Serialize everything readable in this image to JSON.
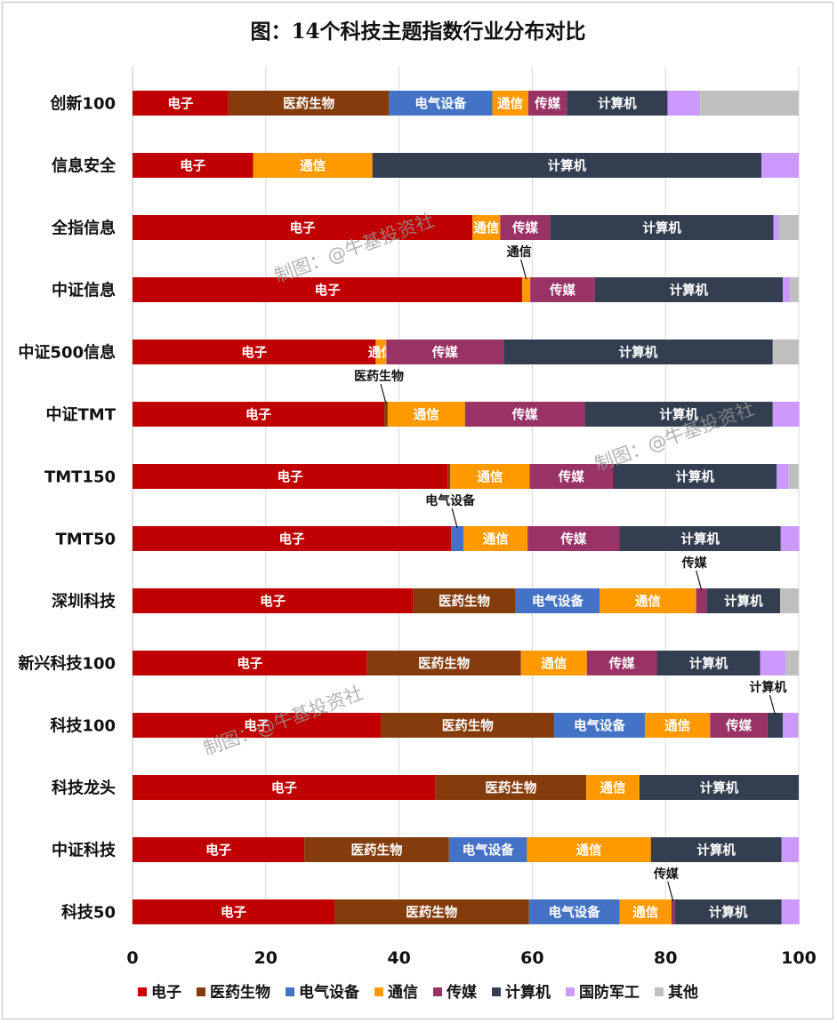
{
  "chart_data": {
    "type": "bar",
    "orientation": "horizontal",
    "stacked": true,
    "title": "图：14个科技主题指数行业分布对比",
    "xlim": [
      0,
      100
    ],
    "xticks": [
      0,
      20,
      40,
      60,
      80,
      100
    ],
    "grid": "vertical",
    "legend_position": "bottom",
    "categories": [
      "创新100",
      "信息安全",
      "全指信息",
      "中证信息",
      "中证500信息",
      "中证TMT",
      "TMT150",
      "TMT50",
      "深圳科技",
      "新兴科技100",
      "科技100",
      "科技龙头",
      "中证科技",
      "科技50"
    ],
    "series": [
      {
        "name": "电子",
        "color": "#c00000",
        "values": [
          14.4,
          18.1,
          51.0,
          58.5,
          36.5,
          37.8,
          47.3,
          47.8,
          42.1,
          35.2,
          37.3,
          45.5,
          25.8,
          30.3
        ]
      },
      {
        "name": "医药生物",
        "color": "#843c0c",
        "values": [
          24.1,
          0,
          0,
          0,
          0,
          0.5,
          0.4,
          0,
          15.4,
          23.1,
          26.0,
          22.6,
          21.7,
          29.2
        ]
      },
      {
        "name": "电气设备",
        "color": "#4472c4",
        "values": [
          15.5,
          0,
          0,
          0,
          0,
          0,
          0,
          1.9,
          12.6,
          0,
          13.6,
          0,
          11.7,
          13.6
        ]
      },
      {
        "name": "通信",
        "color": "#ff9900",
        "values": [
          5.4,
          17.9,
          4.2,
          1.2,
          1.6,
          11.6,
          11.9,
          9.6,
          14.5,
          9.9,
          9.8,
          8.0,
          18.6,
          7.8
        ]
      },
      {
        "name": "传媒",
        "color": "#993366",
        "values": [
          5.8,
          0,
          7.5,
          9.7,
          17.6,
          18.0,
          12.5,
          13.8,
          1.6,
          10.5,
          8.6,
          0,
          0,
          0.5
        ]
      },
      {
        "name": "计算机",
        "color": "#333f50",
        "values": [
          15.1,
          58.4,
          33.5,
          28.2,
          40.4,
          28.2,
          24.6,
          24.2,
          11.0,
          15.5,
          2.3,
          23.9,
          19.6,
          16.0
        ]
      },
      {
        "name": "国防军工",
        "color": "#cc99ff",
        "values": [
          4.9,
          5.6,
          0.8,
          1.1,
          0,
          4.0,
          1.8,
          2.8,
          0,
          3.8,
          2.3,
          0,
          2.6,
          2.7
        ]
      },
      {
        "name": "其他",
        "color": "#bfbfbf",
        "values": [
          14.8,
          0,
          3.0,
          1.3,
          3.9,
          0,
          1.5,
          0,
          2.8,
          2.0,
          0.1,
          0,
          0,
          0
        ]
      }
    ],
    "segment_labels": [
      [
        "电子",
        "医药生物",
        "电气设备",
        "通信",
        "传媒",
        "计算机",
        "",
        ""
      ],
      [
        "电子",
        "",
        "",
        "通信",
        "",
        "计算机",
        "",
        ""
      ],
      [
        "电子",
        "",
        "",
        "通信",
        "传媒",
        "计算机",
        "",
        ""
      ],
      [
        "电子",
        "",
        "",
        "",
        "传媒",
        "计算机",
        "",
        ""
      ],
      [
        "电子",
        "",
        "",
        "通信",
        "传媒",
        "计算机",
        "",
        ""
      ],
      [
        "电子",
        "",
        "",
        "通信",
        "传媒",
        "计算机",
        "",
        ""
      ],
      [
        "电子",
        "",
        "",
        "通信",
        "传媒",
        "计算机",
        "",
        ""
      ],
      [
        "电子",
        "",
        "",
        "通信",
        "传媒",
        "计算机",
        "",
        ""
      ],
      [
        "电子",
        "医药生物",
        "电气设备",
        "通信",
        "",
        "计算机",
        "",
        ""
      ],
      [
        "电子",
        "医药生物",
        "",
        "通信",
        "传媒",
        "计算机",
        "",
        ""
      ],
      [
        "电子",
        "医药生物",
        "电气设备",
        "通信",
        "传媒",
        "",
        "",
        ""
      ],
      [
        "电子",
        "医药生物",
        "",
        "通信",
        "",
        "计算机",
        "",
        ""
      ],
      [
        "电子",
        "医药生物",
        "电气设备",
        "通信",
        "",
        "计算机",
        "",
        ""
      ],
      [
        "电子",
        "医药生物",
        "电气设备",
        "通信",
        "",
        "计算机",
        "",
        ""
      ]
    ],
    "annotations": [
      {
        "category_index": 3,
        "series": "通信",
        "text": "通信"
      },
      {
        "category_index": 5,
        "series": "医药生物",
        "text": "医药生物"
      },
      {
        "category_index": 7,
        "series": "电气设备",
        "text": "电气设备"
      },
      {
        "category_index": 8,
        "series": "传媒",
        "text": "传媒"
      },
      {
        "category_index": 10,
        "series": "计算机",
        "text": "计算机"
      },
      {
        "category_index": 13,
        "series": "传媒",
        "text": "传媒"
      }
    ]
  },
  "watermark": "制图：@牛基投资社"
}
